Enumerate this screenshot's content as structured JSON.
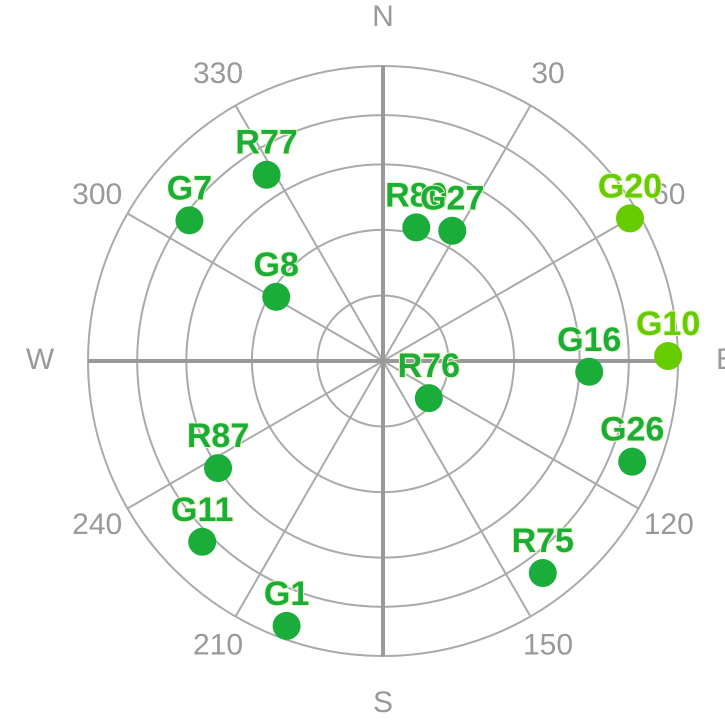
{
  "chart_data": {
    "type": "polar-scatter",
    "directions": [
      {
        "value": 0,
        "label": "N"
      },
      {
        "value": 90,
        "label": "E"
      },
      {
        "value": 180,
        "label": "S"
      },
      {
        "value": 270,
        "label": "W"
      }
    ],
    "angle_ticks": [
      30,
      60,
      120,
      150,
      210,
      240,
      300,
      330
    ],
    "rlim": [
      90,
      0
    ],
    "rticks": [
      0,
      15,
      30,
      50,
      70
    ],
    "categories": [
      "G7",
      "R77",
      "R80",
      "G27",
      "G20",
      "G8",
      "G16",
      "G10",
      "R76",
      "G26",
      "R75",
      "R87",
      "G11",
      "G1"
    ],
    "x": [
      306,
      328,
      14,
      28,
      60,
      301,
      93,
      89,
      129,
      112,
      143,
      237,
      225,
      200
    ],
    "values": [
      17,
      23,
      48,
      45,
      3,
      52,
      27,
      3,
      72,
      8,
      9,
      30,
      12,
      4
    ],
    "colors": [
      "#1aad3a",
      "#1aad3a",
      "#1aad3a",
      "#1aad3a",
      "#66cc00",
      "#1aad3a",
      "#1aad3a",
      "#66cc00",
      "#1aad3a",
      "#1aad3a",
      "#1aad3a",
      "#1aad3a",
      "#1aad3a",
      "#1aad3a"
    ]
  }
}
